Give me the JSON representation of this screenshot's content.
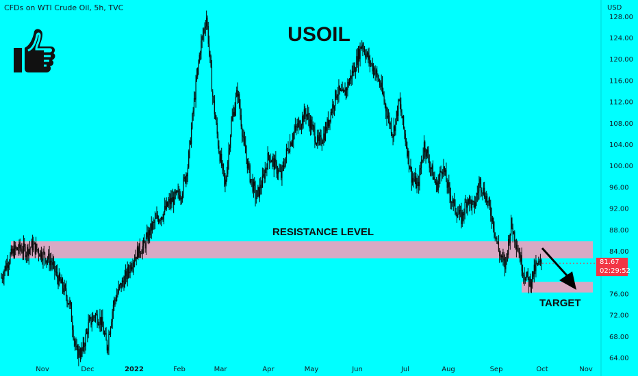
{
  "header": {
    "symbol_text": "CFDs on WTI Crude Oil, 5h, TVC"
  },
  "title": "USOIL",
  "annotations": {
    "resistance": "RESISTANCE LEVEL",
    "target": "TARGET"
  },
  "price_axis_unit": "USD",
  "last_price": {
    "price": "81.67",
    "countdown": "02:29:52"
  },
  "icons": {
    "thumb": "thumbs-up-icon",
    "arrow": "arrow-down-right-icon"
  },
  "colors": {
    "background": "#00FFFF",
    "zone": "#D8A9C4",
    "candle": "#0a0a0a",
    "price_tag": "#F23645"
  },
  "chart_data": {
    "type": "line",
    "title": "USOIL",
    "ylabel": "USD",
    "ylim": [
      62,
      129
    ],
    "y_ticks": [
      "64.00",
      "68.00",
      "72.00",
      "76.00",
      "80.00",
      "84.00",
      "88.00",
      "92.00",
      "96.00",
      "100.00",
      "104.00",
      "108.00",
      "112.00",
      "116.00",
      "120.00",
      "124.00",
      "128.00"
    ],
    "x_tick_labels": [
      "Nov",
      "Dec",
      "2022",
      "Feb",
      "Mar",
      "Apr",
      "May",
      "Jun",
      "Jul",
      "Aug",
      "Sep",
      "Oct",
      "Nov"
    ],
    "series": [
      {
        "values": [
          79,
          82,
          84,
          84.5,
          84,
          85,
          84,
          83,
          82,
          79,
          77,
          74,
          65,
          65,
          70,
          72,
          71,
          66,
          74,
          77,
          79,
          82,
          84,
          85,
          88,
          90,
          91,
          93,
          94,
          95,
          100,
          112,
          122,
          128,
          113,
          103,
          96,
          108,
          114,
          104,
          98,
          94,
          97,
          102,
          100,
          98,
          103,
          106,
          108,
          110,
          107,
          104,
          106,
          110,
          114,
          113,
          116,
          119,
          123,
          120,
          118,
          115,
          110,
          106,
          112,
          105,
          98,
          96,
          104,
          100,
          96,
          100,
          95,
          92,
          90,
          94,
          92,
          97,
          94,
          90,
          84,
          81,
          89,
          85,
          80,
          78,
          81,
          81.67
        ]
      }
    ],
    "zones": [
      {
        "name": "RESISTANCE LEVEL",
        "low": 82.6,
        "high": 85.8
      },
      {
        "name": "TARGET",
        "low": 76.2,
        "high": 78.2
      }
    ]
  }
}
